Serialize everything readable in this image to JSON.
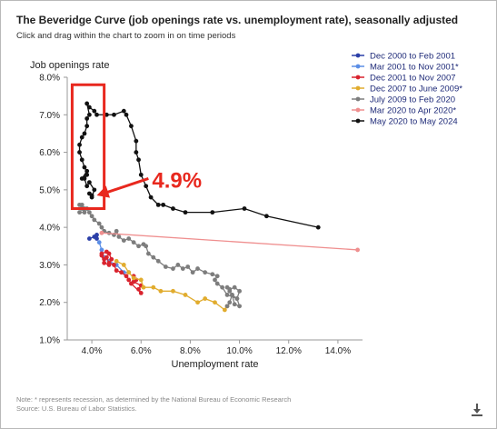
{
  "header": {
    "title": "The Beveridge Curve (job openings rate vs. unemployment rate), seasonally adjusted",
    "subtitle": "Click and drag within the chart to zoom in on time periods"
  },
  "footer": {
    "note": "Note: * represents recession, as determined by the National Bureau of Economic Research",
    "source": "Source: U.S. Bureau of Labor Statistics."
  },
  "icons": {
    "download": "download-icon"
  },
  "chart_data": {
    "type": "line",
    "title": "The Beveridge Curve (job openings rate vs. unemployment rate), seasonally adjusted",
    "xlabel": "Unemployment rate",
    "ylabel": "Job openings rate",
    "xlim": [
      3.0,
      15.0
    ],
    "ylim": [
      1.0,
      8.0
    ],
    "x_ticks": [
      4,
      6,
      8,
      10,
      12,
      14
    ],
    "x_tick_labels": [
      "4.0%",
      "6.0%",
      "8.0%",
      "10.0%",
      "12.0%",
      "14.0%"
    ],
    "y_ticks": [
      1,
      2,
      3,
      4,
      5,
      6,
      7,
      8
    ],
    "y_tick_labels": [
      "1.0%",
      "2.0%",
      "3.0%",
      "4.0%",
      "5.0%",
      "6.0%",
      "7.0%",
      "8.0%"
    ],
    "grid": false,
    "legend_position": "top-right",
    "annotation": {
      "label": "4.9%",
      "color": "#e8281e",
      "box_x": [
        3.2,
        4.5
      ],
      "box_y": [
        4.5,
        7.8
      ],
      "arrow_from": [
        6.3,
        5.3
      ],
      "arrow_to": [
        4.2,
        4.85
      ]
    },
    "series": [
      {
        "name": "Dec 2000 to Feb 2001",
        "color": "#2b3fa8",
        "points": [
          [
            3.9,
            3.7
          ],
          [
            4.1,
            3.75
          ],
          [
            4.2,
            3.8
          ],
          [
            4.2,
            3.7
          ]
        ]
      },
      {
        "name": "Mar 2001 to Nov 2001*",
        "color": "#5b8ee6",
        "points": [
          [
            4.3,
            3.6
          ],
          [
            4.4,
            3.4
          ],
          [
            4.5,
            3.2
          ],
          [
            4.7,
            3.1
          ],
          [
            5.0,
            3.0
          ],
          [
            5.3,
            2.8
          ],
          [
            5.5,
            2.8
          ]
        ]
      },
      {
        "name": "Dec 2001 to Nov 2007",
        "color": "#d9232e",
        "points": [
          [
            5.7,
            2.7
          ],
          [
            5.8,
            2.6
          ],
          [
            5.7,
            2.55
          ],
          [
            6.0,
            2.45
          ],
          [
            5.9,
            2.35
          ],
          [
            6.0,
            2.25
          ],
          [
            5.6,
            2.5
          ],
          [
            5.5,
            2.6
          ],
          [
            5.4,
            2.7
          ],
          [
            5.2,
            2.8
          ],
          [
            5.0,
            2.85
          ],
          [
            4.9,
            3.0
          ],
          [
            4.7,
            3.05
          ],
          [
            4.6,
            3.2
          ],
          [
            4.5,
            3.15
          ],
          [
            4.4,
            3.3
          ],
          [
            4.6,
            3.35
          ],
          [
            4.7,
            3.3
          ],
          [
            4.8,
            3.15
          ],
          [
            4.7,
            3.0
          ],
          [
            4.5,
            3.05
          ],
          [
            4.4,
            3.25
          ]
        ]
      },
      {
        "name": "Dec 2007 to June 2009*",
        "color": "#e1ac2e",
        "points": [
          [
            5.0,
            3.1
          ],
          [
            5.3,
            3.0
          ],
          [
            5.5,
            2.8
          ],
          [
            5.7,
            2.65
          ],
          [
            6.0,
            2.6
          ],
          [
            6.1,
            2.4
          ],
          [
            6.5,
            2.4
          ],
          [
            6.8,
            2.3
          ],
          [
            7.3,
            2.3
          ],
          [
            7.8,
            2.2
          ],
          [
            8.3,
            2.0
          ],
          [
            8.6,
            2.1
          ],
          [
            9.0,
            2.0
          ],
          [
            9.4,
            1.8
          ],
          [
            9.5,
            1.9
          ]
        ]
      },
      {
        "name": "July 2009 to Feb 2020",
        "color": "#7d7d7d",
        "points": [
          [
            9.5,
            1.9
          ],
          [
            9.6,
            2.0
          ],
          [
            9.7,
            2.2
          ],
          [
            9.9,
            2.1
          ],
          [
            10.0,
            1.9
          ],
          [
            9.8,
            1.95
          ],
          [
            9.7,
            2.2
          ],
          [
            9.6,
            2.3
          ],
          [
            9.5,
            2.4
          ],
          [
            9.6,
            2.35
          ],
          [
            9.8,
            2.4
          ],
          [
            10.0,
            2.3
          ],
          [
            9.9,
            2.1
          ],
          [
            9.5,
            2.2
          ],
          [
            9.3,
            2.4
          ],
          [
            9.1,
            2.5
          ],
          [
            9.0,
            2.6
          ],
          [
            9.1,
            2.7
          ],
          [
            8.9,
            2.75
          ],
          [
            8.6,
            2.8
          ],
          [
            8.3,
            2.9
          ],
          [
            8.1,
            2.8
          ],
          [
            7.9,
            2.95
          ],
          [
            7.7,
            2.9
          ],
          [
            7.5,
            3.0
          ],
          [
            7.3,
            2.9
          ],
          [
            7.0,
            2.95
          ],
          [
            6.7,
            3.1
          ],
          [
            6.5,
            3.2
          ],
          [
            6.3,
            3.3
          ],
          [
            6.2,
            3.5
          ],
          [
            6.1,
            3.55
          ],
          [
            5.9,
            3.5
          ],
          [
            5.7,
            3.6
          ],
          [
            5.5,
            3.7
          ],
          [
            5.3,
            3.65
          ],
          [
            5.1,
            3.75
          ],
          [
            5.0,
            3.9
          ],
          [
            4.9,
            3.8
          ],
          [
            4.7,
            3.85
          ],
          [
            4.5,
            3.9
          ],
          [
            4.4,
            4.0
          ],
          [
            4.3,
            4.1
          ],
          [
            4.1,
            4.2
          ],
          [
            4.0,
            4.3
          ],
          [
            3.9,
            4.4
          ],
          [
            3.8,
            4.5
          ],
          [
            3.7,
            4.5
          ],
          [
            3.6,
            4.6
          ],
          [
            3.5,
            4.6
          ],
          [
            3.6,
            4.5
          ],
          [
            3.7,
            4.4
          ],
          [
            3.5,
            4.4
          ]
        ]
      },
      {
        "name": "Mar 2020 to Apr 2020*",
        "color": "#ef8f8f",
        "points": [
          [
            4.4,
            3.85
          ],
          [
            14.8,
            3.4
          ]
        ]
      },
      {
        "name": "May 2020 to May 2024",
        "color": "#111111",
        "points": [
          [
            13.2,
            4.0
          ],
          [
            11.1,
            4.3
          ],
          [
            10.2,
            4.5
          ],
          [
            8.9,
            4.4
          ],
          [
            7.8,
            4.4
          ],
          [
            7.3,
            4.5
          ],
          [
            6.9,
            4.6
          ],
          [
            6.7,
            4.6
          ],
          [
            6.4,
            4.8
          ],
          [
            6.2,
            5.1
          ],
          [
            6.0,
            5.4
          ],
          [
            5.9,
            5.8
          ],
          [
            5.8,
            6.0
          ],
          [
            5.8,
            6.3
          ],
          [
            5.6,
            6.7
          ],
          [
            5.4,
            7.0
          ],
          [
            5.3,
            7.1
          ],
          [
            4.9,
            7.0
          ],
          [
            4.6,
            7.0
          ],
          [
            4.2,
            7.0
          ],
          [
            4.1,
            7.1
          ],
          [
            3.9,
            7.2
          ],
          [
            3.8,
            7.3
          ],
          [
            3.9,
            7.0
          ],
          [
            3.8,
            6.9
          ],
          [
            3.8,
            6.7
          ],
          [
            3.7,
            6.5
          ],
          [
            3.6,
            6.4
          ],
          [
            3.5,
            6.2
          ],
          [
            3.5,
            6.0
          ],
          [
            3.6,
            5.8
          ],
          [
            3.7,
            5.6
          ],
          [
            3.8,
            5.5
          ],
          [
            3.6,
            5.3
          ],
          [
            3.8,
            5.4
          ],
          [
            3.7,
            5.3
          ],
          [
            3.8,
            5.1
          ],
          [
            3.9,
            5.2
          ],
          [
            4.1,
            5.0
          ],
          [
            4.0,
            4.8
          ],
          [
            3.9,
            4.9
          ],
          [
            4.0,
            4.85
          ]
        ]
      }
    ]
  }
}
